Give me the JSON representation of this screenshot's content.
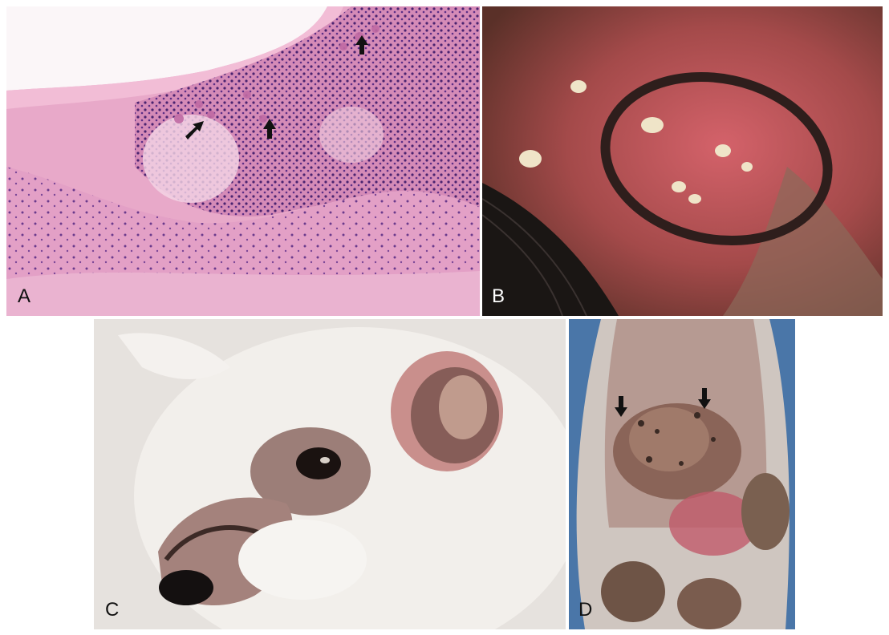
{
  "figure": {
    "panels": [
      {
        "id": "A",
        "label": "A",
        "content": "histology-micrograph",
        "arrows": 3
      },
      {
        "id": "B",
        "label": "B",
        "content": "skin-lesion-photo"
      },
      {
        "id": "C",
        "label": "C",
        "content": "dog-face-photo"
      },
      {
        "id": "D",
        "label": "D",
        "content": "paw-pad-photo",
        "arrows": 2
      }
    ]
  },
  "colors": {
    "histology_pink": "#e7a4c8",
    "histology_purple": "#5a2d7a",
    "skin_red": "#b8484a",
    "fur_white": "#ece9e6",
    "background_white": "#ffffff",
    "paw_background_blue": "#4a76a8"
  }
}
